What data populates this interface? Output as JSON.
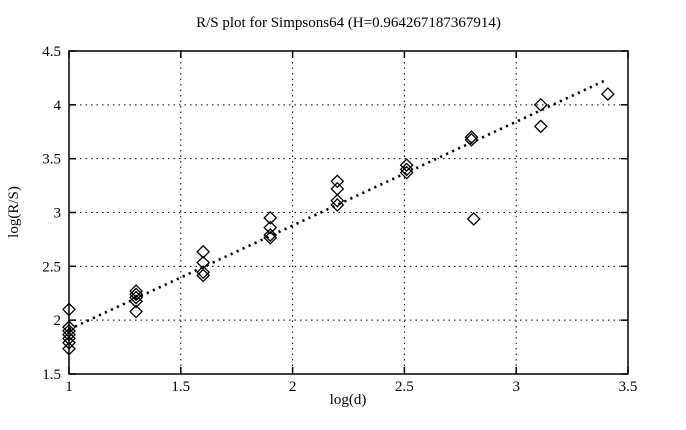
{
  "figure": {
    "background_color": "#ffffff",
    "foreground_color": "#000000"
  },
  "chart_data": {
    "type": "scatter",
    "title": "R/S plot for Simpsons64 (H=0.964267187367914)",
    "xlabel": "log(d)",
    "ylabel": "log(R/S)",
    "xlim": [
      1.0,
      3.5
    ],
    "ylim": [
      1.5,
      4.5
    ],
    "xticks": [
      1,
      1.5,
      2,
      2.5,
      3,
      3.5
    ],
    "yticks": [
      1.5,
      2,
      2.5,
      3,
      3.5,
      4,
      4.5
    ],
    "grid": true,
    "legend": "none",
    "marker": "open-diamond",
    "points": [
      [
        1.0,
        2.1
      ],
      [
        1.0,
        1.935
      ],
      [
        1.0,
        1.9
      ],
      [
        1.0,
        1.865
      ],
      [
        1.0,
        1.83
      ],
      [
        1.0,
        1.79
      ],
      [
        1.0,
        1.735
      ],
      [
        1.3,
        2.27
      ],
      [
        1.3,
        2.24
      ],
      [
        1.3,
        2.21
      ],
      [
        1.3,
        2.175
      ],
      [
        1.3,
        2.08
      ],
      [
        1.6,
        2.635
      ],
      [
        1.6,
        2.535
      ],
      [
        1.6,
        2.445
      ],
      [
        1.6,
        2.415
      ],
      [
        1.9,
        2.95
      ],
      [
        1.9,
        2.86
      ],
      [
        1.9,
        2.79
      ],
      [
        1.9,
        2.765
      ],
      [
        2.2,
        3.29
      ],
      [
        2.2,
        3.22
      ],
      [
        2.2,
        3.11
      ],
      [
        2.2,
        3.07
      ],
      [
        2.51,
        3.44
      ],
      [
        2.51,
        3.4
      ],
      [
        2.51,
        3.37
      ],
      [
        2.8,
        3.7
      ],
      [
        2.8,
        3.675
      ],
      [
        2.81,
        2.94
      ],
      [
        3.11,
        4.0
      ],
      [
        3.11,
        3.8
      ],
      [
        3.41,
        4.1
      ]
    ],
    "trendline": {
      "slope": 0.964267187367914,
      "intercept": 0.95,
      "x_start": 1.0,
      "x_end": 3.4,
      "style": "dotted"
    }
  }
}
